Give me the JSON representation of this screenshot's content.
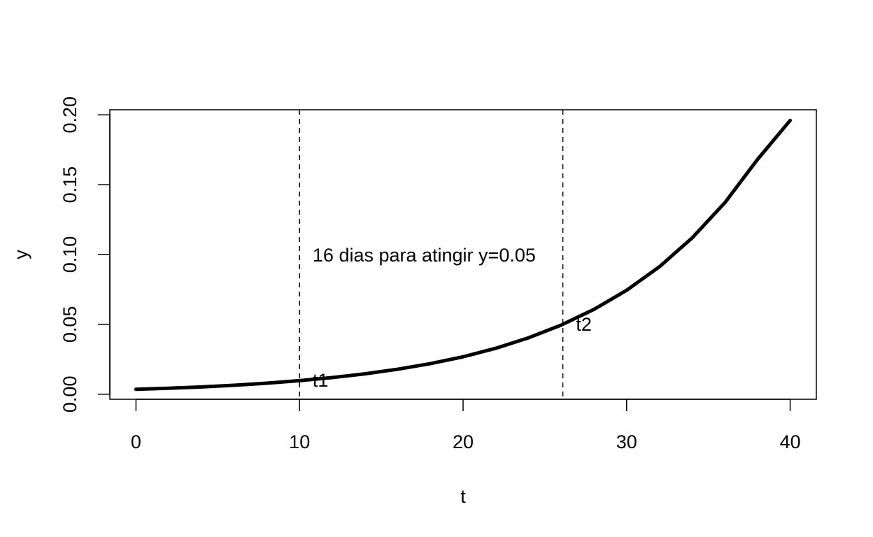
{
  "chart_data": {
    "type": "line",
    "xlabel": "t",
    "ylabel": "y",
    "xlim": [
      -1.6,
      41.6
    ],
    "ylim": [
      -0.0036,
      0.2036
    ],
    "x_ticks": [
      {
        "value": 0,
        "label": "0"
      },
      {
        "value": 10,
        "label": "10"
      },
      {
        "value": 20,
        "label": "20"
      },
      {
        "value": 30,
        "label": "30"
      },
      {
        "value": 40,
        "label": "40"
      }
    ],
    "y_ticks": [
      {
        "value": 0.0,
        "label": "0.00"
      },
      {
        "value": 0.05,
        "label": "0.05"
      },
      {
        "value": 0.1,
        "label": "0.10"
      },
      {
        "value": 0.15,
        "label": "0.15"
      },
      {
        "value": 0.2,
        "label": "0.20"
      }
    ],
    "series": [
      {
        "color": "#000000",
        "x": [
          0,
          2,
          4,
          6,
          8,
          10,
          12,
          14,
          16,
          18,
          20,
          22,
          24,
          26,
          28,
          30,
          32,
          34,
          36,
          38,
          40
        ],
        "y": [
          0.0035,
          0.0043,
          0.0052,
          0.0064,
          0.0079,
          0.0097,
          0.0119,
          0.0146,
          0.0179,
          0.0219,
          0.0268,
          0.0329,
          0.0404,
          0.0495,
          0.0607,
          0.0744,
          0.0912,
          0.1118,
          0.137,
          0.168,
          0.196
        ]
      }
    ],
    "vlines": [
      {
        "x": 10,
        "style": "dashed"
      },
      {
        "x": 26.1,
        "style": "dashed"
      }
    ],
    "annotations": [
      {
        "text": "16 dias para atingir y=0.05",
        "x": 10.8,
        "y": 0.1
      },
      {
        "text": "t1",
        "x": 10.8,
        "y": 0.0105
      },
      {
        "text": "t2",
        "x": 26.9,
        "y": 0.0505
      }
    ],
    "grid": false,
    "legend": "none"
  }
}
